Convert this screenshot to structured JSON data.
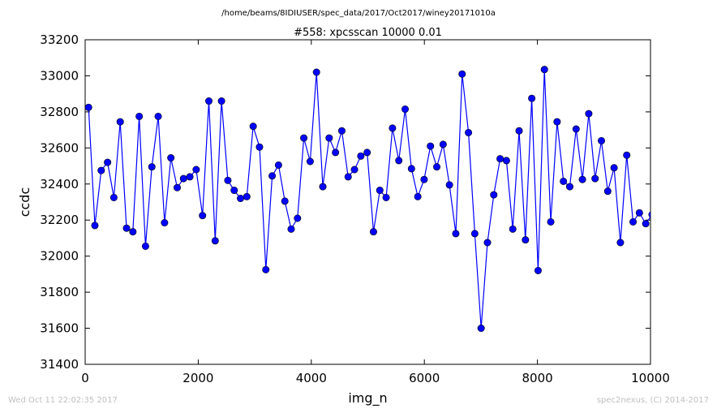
{
  "chart_data": {
    "type": "line",
    "suptitle": "/home/beams/8IDIUSER/spec_data/2017/Oct2017/winey20171010a",
    "title": "#558: xpcsscan 10000 0.01",
    "xlabel": "img_n",
    "ylabel": "ccdc",
    "xlim": [
      0,
      10000
    ],
    "ylim": [
      31400,
      33200
    ],
    "xticks": [
      0,
      2000,
      4000,
      6000,
      8000,
      10000
    ],
    "yticks": [
      31400,
      31600,
      31800,
      32000,
      32200,
      32400,
      32600,
      32800,
      33000,
      33200
    ],
    "grid": false,
    "line_color": "#0000ff",
    "marker_color": "#0000ff",
    "x": [
      60,
      172,
      284,
      396,
      508,
      620,
      732,
      844,
      956,
      1068,
      1180,
      1292,
      1404,
      1516,
      1628,
      1740,
      1852,
      1964,
      2076,
      2188,
      2300,
      2412,
      2524,
      2636,
      2748,
      2860,
      2972,
      3084,
      3196,
      3308,
      3420,
      3532,
      3644,
      3756,
      3868,
      3980,
      4092,
      4204,
      4316,
      4428,
      4540,
      4652,
      4764,
      4876,
      4988,
      5100,
      5212,
      5324,
      5436,
      5548,
      5660,
      5772,
      5884,
      5996,
      6108,
      6220,
      6332,
      6444,
      6556,
      6668,
      6780,
      6892,
      7004,
      7116,
      7228,
      7340,
      7452,
      7564,
      7676,
      7788,
      7900,
      8012,
      8124,
      8236,
      8348,
      8460,
      8572,
      8684,
      8796,
      8908,
      9020,
      9132,
      9244,
      9356,
      9468,
      9580,
      9692,
      9804,
      9916,
      10028
    ],
    "values": [
      32825,
      32170,
      32475,
      32520,
      32325,
      32745,
      32155,
      32135,
      32775,
      32055,
      32495,
      32775,
      32185,
      32545,
      32380,
      32430,
      32440,
      32480,
      32225,
      32860,
      32085,
      32860,
      32420,
      32365,
      32320,
      32330,
      32720,
      32605,
      31925,
      32445,
      32505,
      32305,
      32150,
      32210,
      32655,
      32525,
      33020,
      32385,
      32655,
      32575,
      32695,
      32440,
      32480,
      32555,
      32575,
      32135,
      32365,
      32325,
      32710,
      32530,
      32815,
      32485,
      32330,
      32425,
      32610,
      32495,
      32620,
      32395,
      32125,
      33010,
      32685,
      32125,
      31600,
      32075,
      32340,
      32540,
      32530,
      32150,
      32695,
      32090,
      32875,
      31920,
      33035,
      32190,
      32745,
      32415,
      32385,
      32705,
      32425,
      32790,
      32430,
      32640,
      32360,
      32490,
      32075,
      32560,
      32190,
      32240,
      32180,
      32230
    ]
  },
  "footer": {
    "timestamp": "Wed Oct 11 22:02:35 2017",
    "credit": "spec2nexus, (C) 2014-2017"
  }
}
